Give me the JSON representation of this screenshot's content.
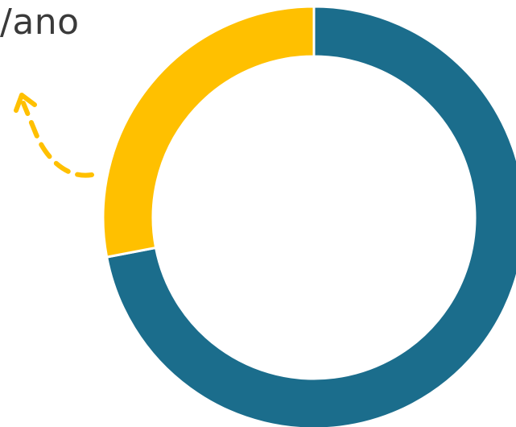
{
  "caption": {
    "text": "/ano"
  },
  "colors": {
    "accent": "#FFC000",
    "primary": "#1B6D8C",
    "background": "#FFFFFF",
    "text": "#3A3A3A"
  },
  "arrow": {
    "icon": "dashed-curved-arrow-icon",
    "color": "#FFC000"
  },
  "chart_data": {
    "type": "pie",
    "donut": true,
    "title": "",
    "slices": [
      {
        "label": "",
        "value": 72,
        "color": "#1B6D8C"
      },
      {
        "label": "",
        "value": 28,
        "color": "#FFC000"
      }
    ]
  }
}
